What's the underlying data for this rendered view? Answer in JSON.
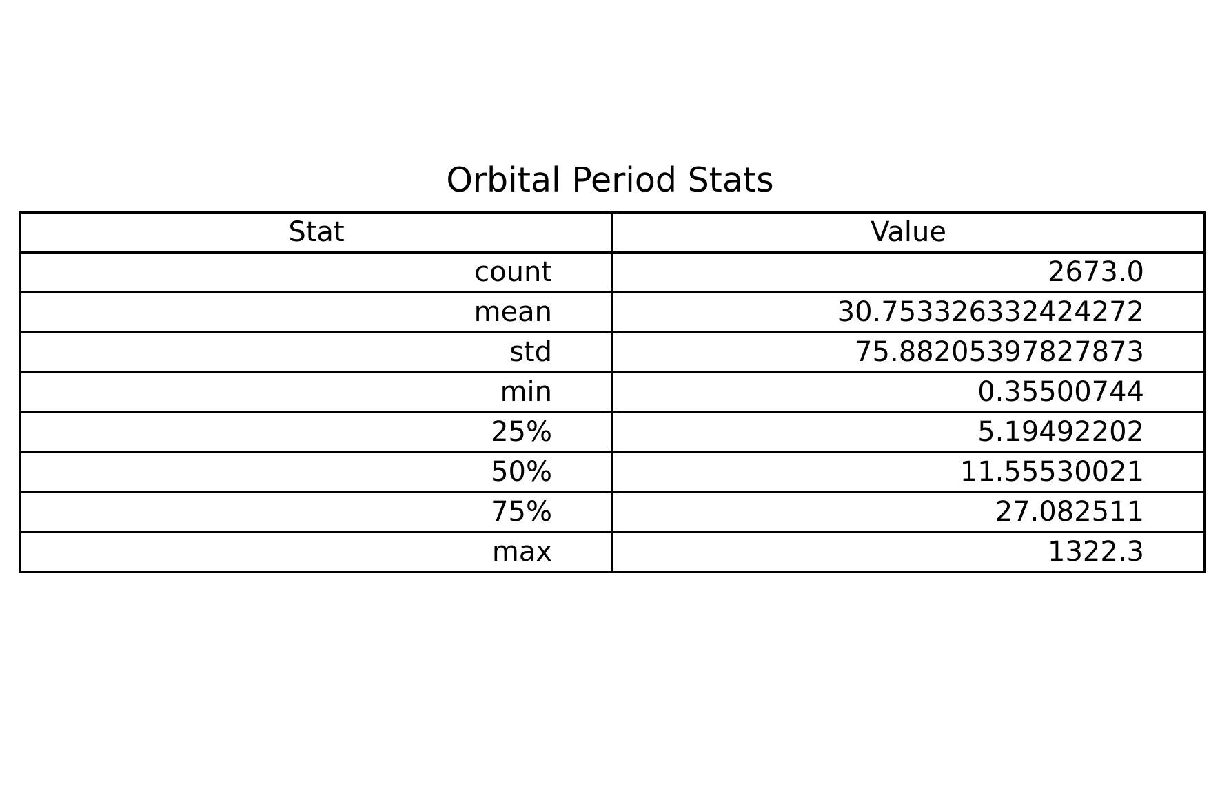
{
  "chart_data": {
    "type": "table",
    "title": "Orbital Period Stats",
    "columns": [
      "Stat",
      "Value"
    ],
    "rows": [
      [
        "count",
        "2673.0"
      ],
      [
        "mean",
        "30.753326332424272"
      ],
      [
        "std",
        "75.88205397827873"
      ],
      [
        "min",
        "0.35500744"
      ],
      [
        "25%",
        "5.19492202"
      ],
      [
        "50%",
        "11.55530021"
      ],
      [
        "75%",
        "27.082511"
      ],
      [
        "max",
        "1322.3"
      ]
    ]
  },
  "colors": {
    "border": "#000000",
    "text": "#000000",
    "background": "#ffffff"
  }
}
